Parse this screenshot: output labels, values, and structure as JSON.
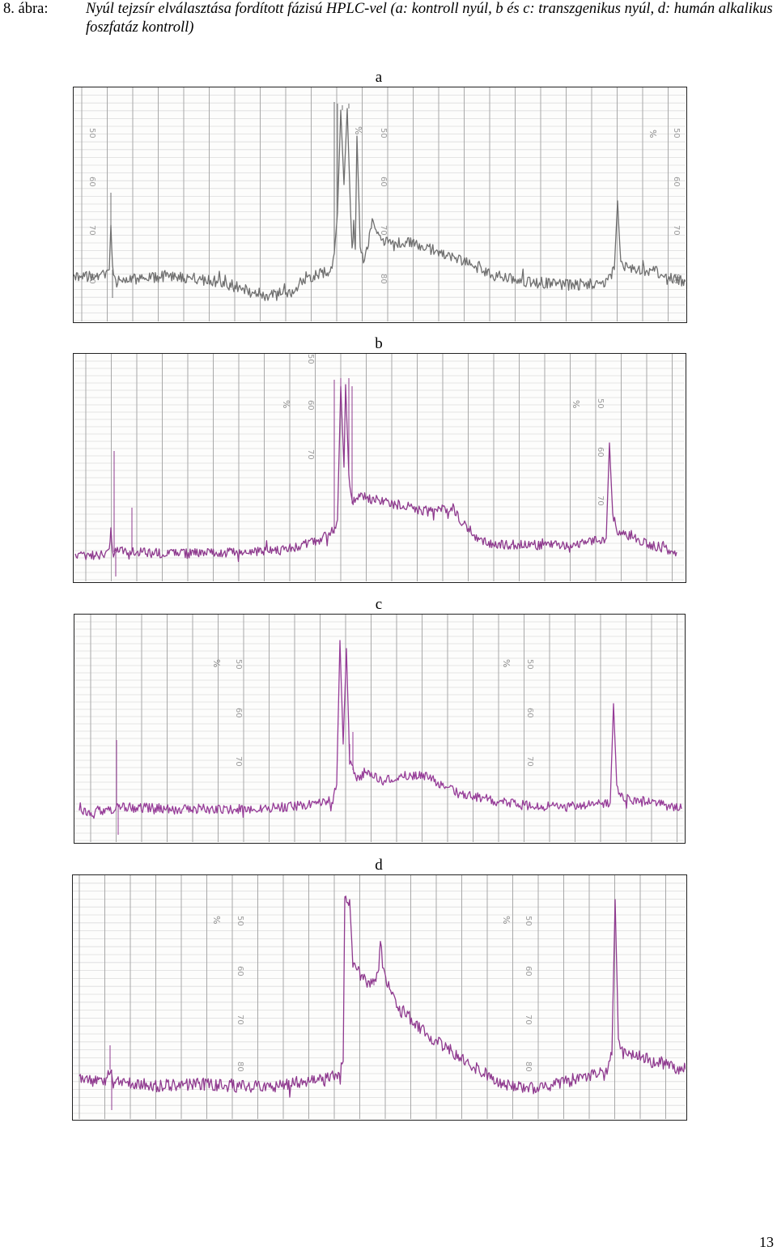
{
  "figure": {
    "label": "8. ábra:",
    "caption": "Nyúl tejzsír elválasztása fordított fázisú HPLC-vel (a: kontroll nyúl, b és c: transzgenikus nyúl, d: humán alkalikus foszfatáz kontroll)"
  },
  "panels": [
    {
      "id": "a",
      "label": "a",
      "trace_color": "#6f6f6f",
      "chart_scale": [
        "50",
        "60",
        "70",
        "80"
      ],
      "chart_marks": [
        "%"
      ]
    },
    {
      "id": "b",
      "label": "b",
      "trace_color": "#8e3a8e",
      "chart_scale": [
        "50",
        "60",
        "70"
      ],
      "chart_marks": [
        "%"
      ]
    },
    {
      "id": "c",
      "label": "c",
      "trace_color": "#963c98",
      "chart_scale": [
        "50",
        "60",
        "70"
      ],
      "chart_marks": [
        "%"
      ]
    },
    {
      "id": "d",
      "label": "d",
      "trace_color": "#8f3a8f",
      "chart_scale": [
        "50",
        "60",
        "70",
        "80"
      ],
      "chart_marks": [
        "%"
      ]
    }
  ],
  "page_number": "13"
}
